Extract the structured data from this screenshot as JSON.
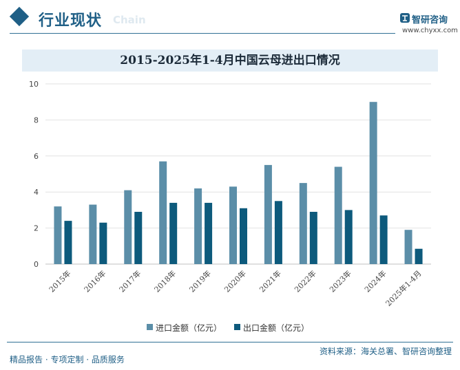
{
  "header": {
    "section_title": "行业现状",
    "section_subtitle": "Chain",
    "brand_name": "智研咨询",
    "brand_url": "www.chyxx.com"
  },
  "chart_data": {
    "type": "bar",
    "title": "2015-2025年1-4月中国云母进出口情况",
    "xlabel": "",
    "ylabel": "",
    "ylim": [
      0,
      10
    ],
    "yticks": [
      0,
      2,
      4,
      6,
      8,
      10
    ],
    "grid": true,
    "legend_position": "bottom",
    "categories": [
      "2015年",
      "2016年",
      "2017年",
      "2018年",
      "2019年",
      "2020年",
      "2021年",
      "2022年",
      "2023年",
      "2024年",
      "2025年1-4月"
    ],
    "series": [
      {
        "name": "进口金额（亿元）",
        "color": "#5b8ea8",
        "values": [
          3.2,
          3.3,
          4.1,
          5.7,
          4.2,
          4.3,
          5.5,
          4.5,
          5.4,
          9.0,
          1.9
        ]
      },
      {
        "name": "出口金额（亿元）",
        "color": "#0d5a7c",
        "values": [
          2.4,
          2.3,
          2.9,
          3.4,
          3.4,
          3.1,
          3.5,
          2.9,
          3.0,
          2.7,
          0.85
        ]
      }
    ]
  },
  "footer": {
    "tagline": "精品报告 · 专项定制 · 品质服务",
    "source": "资料来源：海关总署、智研咨询整理"
  }
}
